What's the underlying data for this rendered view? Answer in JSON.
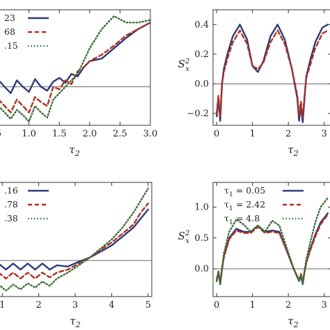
{
  "chart_data": [
    {
      "type": "line",
      "panel": "top-left",
      "xlabel": "τ2",
      "ylabel": "",
      "xlim": [
        0.5,
        3.0
      ],
      "ylim": [
        -0.3,
        0.6
      ],
      "x_ticks": [
        "5",
        "1.0",
        "1.5",
        "2.0",
        "2.5",
        "3.0"
      ],
      "y_ticks": [],
      "reference_line": 0,
      "legend_position": "top-left",
      "series": [
        {
          "name": "23",
          "color": "#2e3a7a",
          "style": "solid",
          "x": [
            0.5,
            0.6,
            0.7,
            0.8,
            0.9,
            1.0,
            1.1,
            1.2,
            1.3,
            1.4,
            1.5,
            1.6,
            1.7,
            1.8,
            1.9,
            2.0,
            2.2,
            2.4,
            2.6,
            2.8,
            3.0
          ],
          "y": [
            0.05,
            0.0,
            -0.05,
            0.05,
            0.0,
            -0.04,
            0.06,
            0.0,
            -0.03,
            0.04,
            0.07,
            0.03,
            0.1,
            0.08,
            0.15,
            0.2,
            0.22,
            0.3,
            0.38,
            0.45,
            0.5
          ]
        },
        {
          "name": "68",
          "color": "#b03020",
          "style": "dashed",
          "x": [
            0.5,
            0.6,
            0.7,
            0.8,
            0.9,
            1.0,
            1.1,
            1.2,
            1.3,
            1.4,
            1.5,
            1.6,
            1.7,
            1.8,
            1.9,
            2.0,
            2.2,
            2.4,
            2.6,
            2.8,
            3.0
          ],
          "y": [
            -0.1,
            -0.15,
            -0.2,
            -0.1,
            -0.15,
            -0.2,
            -0.08,
            -0.12,
            -0.15,
            0.0,
            -0.02,
            0.05,
            0.02,
            0.12,
            0.15,
            0.2,
            0.25,
            0.32,
            0.4,
            0.45,
            0.5
          ]
        },
        {
          "name": ".15",
          "color": "#3f6e3a",
          "style": "dotted",
          "x": [
            0.5,
            0.6,
            0.7,
            0.8,
            0.9,
            1.0,
            1.1,
            1.2,
            1.3,
            1.4,
            1.5,
            1.6,
            1.7,
            1.8,
            1.9,
            2.0,
            2.2,
            2.4,
            2.6,
            2.8,
            3.0
          ],
          "y": [
            -0.15,
            -0.2,
            -0.25,
            -0.18,
            -0.22,
            -0.27,
            -0.15,
            -0.2,
            -0.24,
            -0.1,
            -0.05,
            0.0,
            0.05,
            0.1,
            0.2,
            0.3,
            0.45,
            0.55,
            0.5,
            0.5,
            0.52
          ]
        }
      ]
    },
    {
      "type": "line",
      "panel": "top-right",
      "xlabel": "τ2",
      "ylabel": "S²ₓ",
      "xlim": [
        -0.1,
        3.2
      ],
      "ylim": [
        -0.28,
        0.5
      ],
      "x_ticks": [
        "0",
        "1",
        "2",
        "3"
      ],
      "y_ticks": [
        "−0.2",
        "0.0",
        "0.2",
        "0.4"
      ],
      "reference_line": 0,
      "series": [
        {
          "name": "solid",
          "color": "#2e3a7a",
          "style": "solid",
          "x": [
            0.0,
            0.05,
            0.1,
            0.15,
            0.2,
            0.3,
            0.45,
            0.65,
            0.85,
            1.0,
            1.15,
            1.3,
            1.5,
            1.7,
            1.9,
            2.1,
            2.25,
            2.3,
            2.35,
            2.4,
            2.45,
            2.5,
            2.6,
            2.75,
            2.95,
            3.1
          ],
          "y": [
            -0.22,
            -0.1,
            -0.25,
            0.0,
            0.1,
            0.2,
            0.32,
            0.4,
            0.3,
            0.12,
            0.08,
            0.15,
            0.32,
            0.4,
            0.3,
            0.1,
            -0.1,
            -0.25,
            -0.15,
            -0.26,
            -0.1,
            0.05,
            0.15,
            0.28,
            0.38,
            0.4
          ]
        },
        {
          "name": "dashed",
          "color": "#b03020",
          "style": "dashed",
          "x": [
            0.0,
            0.05,
            0.1,
            0.15,
            0.2,
            0.3,
            0.45,
            0.65,
            0.85,
            1.0,
            1.15,
            1.3,
            1.5,
            1.7,
            1.9,
            2.1,
            2.25,
            2.3,
            2.35,
            2.4,
            2.45,
            2.5,
            2.6,
            2.75,
            2.95,
            3.1
          ],
          "y": [
            -0.2,
            -0.08,
            -0.22,
            0.0,
            0.08,
            0.17,
            0.28,
            0.36,
            0.27,
            0.12,
            0.1,
            0.14,
            0.28,
            0.36,
            0.27,
            0.1,
            -0.08,
            -0.22,
            -0.12,
            -0.23,
            -0.08,
            0.04,
            0.12,
            0.24,
            0.34,
            0.36
          ]
        }
      ]
    },
    {
      "type": "line",
      "panel": "bottom-left",
      "xlabel": "τ2",
      "ylabel": "",
      "xlim": [
        0.9,
        5.1
      ],
      "ylim": [
        -0.6,
        1.3
      ],
      "x_ticks": [
        "1",
        "2",
        "3",
        "4",
        "5"
      ],
      "y_ticks": [],
      "reference_line": 0,
      "legend_position": "top-left",
      "series": [
        {
          "name": ".16",
          "color": "#2e3a7a",
          "style": "solid",
          "x": [
            0.9,
            1.1,
            1.3,
            1.5,
            1.7,
            1.9,
            2.1,
            2.3,
            2.5,
            2.8,
            3.1,
            3.4,
            3.7,
            4.0,
            4.3,
            4.6,
            4.8,
            5.0
          ],
          "y": [
            -0.05,
            -0.15,
            -0.05,
            -0.15,
            -0.05,
            -0.15,
            -0.05,
            -0.15,
            -0.08,
            -0.1,
            -0.02,
            0.05,
            0.15,
            0.25,
            0.4,
            0.55,
            0.7,
            0.85
          ]
        },
        {
          "name": ".78",
          "color": "#b03020",
          "style": "dashed",
          "x": [
            0.9,
            1.1,
            1.3,
            1.5,
            1.7,
            1.9,
            2.1,
            2.3,
            2.5,
            2.8,
            3.1,
            3.4,
            3.7,
            4.0,
            4.3,
            4.6,
            4.8,
            5.0
          ],
          "y": [
            -0.2,
            -0.3,
            -0.2,
            -0.3,
            -0.2,
            -0.3,
            -0.2,
            -0.28,
            -0.2,
            -0.15,
            -0.05,
            0.05,
            0.18,
            0.3,
            0.45,
            0.6,
            0.8,
            0.95
          ]
        },
        {
          "name": ".38",
          "color": "#3f6e3a",
          "style": "dotted",
          "x": [
            0.9,
            1.1,
            1.3,
            1.5,
            1.7,
            1.9,
            2.1,
            2.3,
            2.5,
            2.8,
            3.1,
            3.4,
            3.7,
            4.0,
            4.3,
            4.6,
            4.8,
            5.0
          ],
          "y": [
            -0.4,
            -0.5,
            -0.4,
            -0.48,
            -0.38,
            -0.45,
            -0.35,
            -0.42,
            -0.3,
            -0.2,
            -0.08,
            0.05,
            0.2,
            0.35,
            0.55,
            0.8,
            1.0,
            1.2
          ]
        }
      ]
    },
    {
      "type": "line",
      "panel": "bottom-right",
      "xlabel": "τ2",
      "ylabel": "S²ₓ",
      "xlim": [
        -0.1,
        3.2
      ],
      "ylim": [
        -0.45,
        1.4
      ],
      "x_ticks": [
        "0",
        "1",
        "2",
        "3"
      ],
      "y_ticks": [
        "0.0",
        "0.5",
        "1.0"
      ],
      "reference_line": 0,
      "legend_position": "top-left",
      "series": [
        {
          "name": "τ1 = 0.05",
          "color": "#2e3a7a",
          "style": "solid",
          "x": [
            0.0,
            0.05,
            0.1,
            0.15,
            0.2,
            0.35,
            0.55,
            0.75,
            0.95,
            1.15,
            1.35,
            1.55,
            1.75,
            1.95,
            2.15,
            2.3,
            2.35,
            2.4,
            2.45,
            2.5,
            2.6,
            2.75,
            2.9,
            3.1
          ],
          "y": [
            -0.2,
            -0.05,
            -0.25,
            0.0,
            0.2,
            0.5,
            0.65,
            0.6,
            0.6,
            0.7,
            0.6,
            0.62,
            0.6,
            0.3,
            0.0,
            -0.2,
            -0.1,
            -0.25,
            -0.05,
            0.1,
            0.3,
            0.55,
            0.75,
            0.9
          ]
        },
        {
          "name": "τ1 = 2.42",
          "color": "#b03020",
          "style": "dashed",
          "x": [
            0.0,
            0.05,
            0.1,
            0.15,
            0.2,
            0.35,
            0.55,
            0.75,
            0.95,
            1.15,
            1.35,
            1.55,
            1.75,
            1.95,
            2.15,
            2.3,
            2.35,
            2.4,
            2.45,
            2.5,
            2.6,
            2.75,
            2.9,
            3.1
          ],
          "y": [
            -0.18,
            -0.04,
            -0.22,
            0.0,
            0.18,
            0.48,
            0.62,
            0.58,
            0.58,
            0.68,
            0.58,
            0.6,
            0.58,
            0.3,
            0.0,
            -0.18,
            -0.08,
            -0.22,
            -0.04,
            0.1,
            0.28,
            0.52,
            0.72,
            0.88
          ]
        },
        {
          "name": "τ1 = 4.8",
          "color": "#3f6e3a",
          "style": "dotted",
          "x": [
            0.0,
            0.05,
            0.1,
            0.15,
            0.2,
            0.35,
            0.55,
            0.75,
            0.95,
            1.15,
            1.35,
            1.55,
            1.75,
            1.95,
            2.15,
            2.3,
            2.35,
            2.4,
            2.45,
            2.5,
            2.6,
            2.75,
            2.9,
            3.1
          ],
          "y": [
            -0.2,
            -0.05,
            -0.25,
            0.0,
            0.25,
            0.6,
            0.8,
            0.72,
            0.6,
            0.7,
            0.6,
            0.78,
            0.7,
            0.35,
            0.0,
            -0.2,
            -0.1,
            -0.25,
            -0.05,
            0.15,
            0.4,
            0.75,
            1.0,
            1.15
          ]
        }
      ]
    }
  ]
}
